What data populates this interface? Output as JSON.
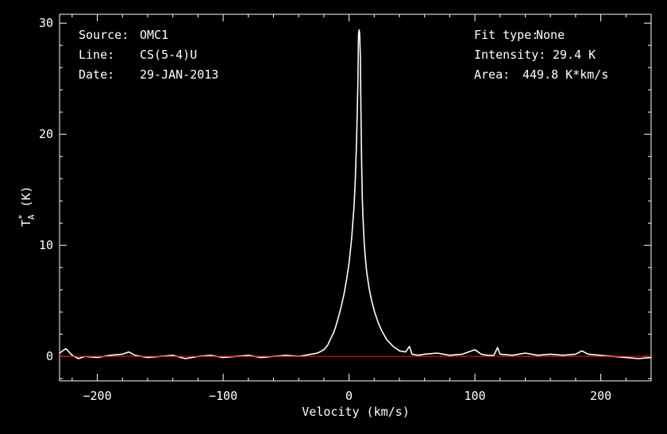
{
  "info_left": [
    {
      "key": "Source:",
      "value": "OMC1"
    },
    {
      "key": "Line:",
      "value": "CS(5-4)U"
    },
    {
      "key": "Date:",
      "value": "29-JAN-2013"
    }
  ],
  "info_right": [
    {
      "key": "Fit type:",
      "value": "None"
    },
    {
      "key": "Intensity:",
      "value": "29.4 K"
    },
    {
      "key": "Area:",
      "value": "449.8 K*km/s"
    }
  ],
  "chart_data": {
    "type": "line",
    "xlabel": "Velocity (km/s)",
    "ylabel": "T*A (K)",
    "xlim": [
      -230,
      240
    ],
    "ylim": [
      -2.2,
      30.8
    ],
    "xticks": [
      -200,
      -100,
      0,
      100,
      200
    ],
    "xtick_labels": [
      "−200",
      "−100",
      "0",
      "100",
      "200"
    ],
    "yticks": [
      0,
      10,
      20,
      30
    ],
    "ytick_labels": [
      "0",
      "10",
      "20",
      "30"
    ],
    "grid": false,
    "baseline": {
      "y": 0,
      "color": "#ff0000"
    },
    "series_color": "#ffffff",
    "series": [
      {
        "x": [
          -230,
          -225,
          -220,
          -215,
          -210,
          -200,
          -190,
          -180,
          -175,
          -170,
          -160,
          -150,
          -140,
          -130,
          -120,
          -110,
          -100,
          -90,
          -80,
          -70,
          -60,
          -50,
          -40,
          -35,
          -30,
          -25,
          -20,
          -17,
          -15,
          -12,
          -10,
          -8,
          -6,
          -4,
          -2,
          0,
          2,
          4,
          5,
          6,
          7,
          7.5,
          8,
          8.5,
          9,
          9.5,
          10,
          10.5,
          11,
          12,
          13,
          14,
          16,
          18,
          20,
          23,
          26,
          30,
          35,
          40,
          45,
          48,
          50,
          55,
          60,
          70,
          80,
          90,
          100,
          105,
          110,
          115,
          118,
          120,
          130,
          140,
          150,
          160,
          170,
          180,
          185,
          190,
          200,
          210,
          220,
          230,
          240
        ],
        "y": [
          0.3,
          0.7,
          0.1,
          -0.2,
          0.0,
          -0.1,
          0.1,
          0.2,
          0.4,
          0.1,
          -0.1,
          0.0,
          0.1,
          -0.2,
          0.0,
          0.1,
          -0.1,
          0.0,
          0.1,
          -0.1,
          0.0,
          0.1,
          0.0,
          0.1,
          0.2,
          0.3,
          0.6,
          1.0,
          1.5,
          2.2,
          2.9,
          3.7,
          4.6,
          5.6,
          6.9,
          8.4,
          10.5,
          13.5,
          16.0,
          19.5,
          24.5,
          29.0,
          29.4,
          29.0,
          27.0,
          22.0,
          17.5,
          14.5,
          12.7,
          10.3,
          8.8,
          7.6,
          6.1,
          5.0,
          4.1,
          3.1,
          2.3,
          1.5,
          0.9,
          0.5,
          0.4,
          0.9,
          0.2,
          0.1,
          0.2,
          0.3,
          0.1,
          0.2,
          0.6,
          0.2,
          0.1,
          0.1,
          0.8,
          0.2,
          0.1,
          0.3,
          0.1,
          0.2,
          0.1,
          0.2,
          0.5,
          0.2,
          0.1,
          0.0,
          -0.1,
          -0.2,
          -0.1
        ]
      }
    ]
  }
}
